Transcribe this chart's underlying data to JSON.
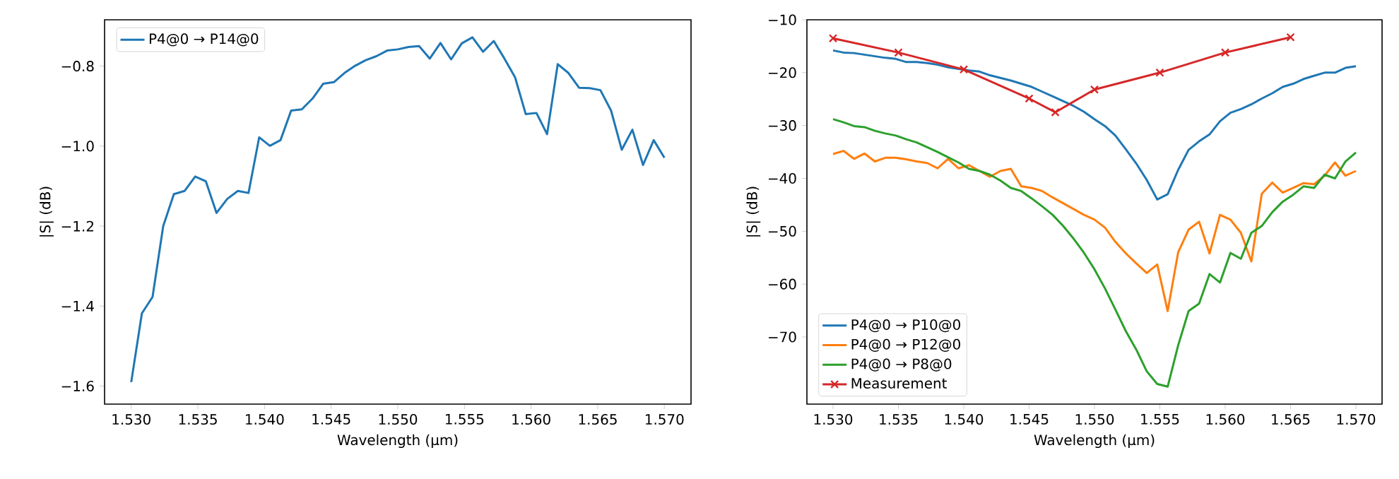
{
  "chart_data": [
    {
      "type": "line",
      "xlabel": "Wavelength (µm)",
      "ylabel": "|S| (dB)",
      "legend": "top left",
      "xlim": [
        1.528,
        1.572
      ],
      "ylim": [
        -1.645,
        -0.684
      ],
      "xticks": [
        {
          "value": 1.53,
          "label": "1.530"
        },
        {
          "value": 1.535,
          "label": "1.535"
        },
        {
          "value": 1.54,
          "label": "1.540"
        },
        {
          "value": 1.545,
          "label": "1.545"
        },
        {
          "value": 1.55,
          "label": "1.550"
        },
        {
          "value": 1.555,
          "label": "1.555"
        },
        {
          "value": 1.56,
          "label": "1.560"
        },
        {
          "value": 1.565,
          "label": "1.565"
        },
        {
          "value": 1.57,
          "label": "1.570"
        }
      ],
      "yticks": [
        {
          "value": -1.6,
          "label": "−1.6"
        },
        {
          "value": -1.4,
          "label": "−1.4"
        },
        {
          "value": -1.2,
          "label": "−1.2"
        },
        {
          "value": -1.0,
          "label": "−1.0"
        },
        {
          "value": -0.8,
          "label": "−0.8"
        }
      ],
      "x": [
        1.53,
        1.5308,
        1.5316,
        1.5324,
        1.5332,
        1.534,
        1.5348,
        1.5356,
        1.5364,
        1.5372,
        1.538,
        1.5388,
        1.5396,
        1.5404,
        1.5412,
        1.542,
        1.5428,
        1.5436,
        1.5444,
        1.5452,
        1.546,
        1.5468,
        1.5476,
        1.5484,
        1.5492,
        1.55,
        1.5508,
        1.5516,
        1.5524,
        1.5532,
        1.554,
        1.5548,
        1.5556,
        1.5564,
        1.5572,
        1.558,
        1.5588,
        1.5596,
        1.5604,
        1.5612,
        1.562,
        1.5628,
        1.5636,
        1.5644,
        1.5652,
        1.566,
        1.5668,
        1.5676,
        1.5684,
        1.5692,
        1.57
      ],
      "series": [
        {
          "name": "P4@0 → P14@0",
          "color": "#1f77b4",
          "values": [
            -1.59,
            -1.418,
            -1.377,
            -1.2,
            -1.12,
            -1.112,
            -1.076,
            -1.088,
            -1.167,
            -1.132,
            -1.112,
            -1.117,
            -0.978,
            -0.999,
            -0.985,
            -0.911,
            -0.908,
            -0.881,
            -0.844,
            -0.84,
            -0.817,
            -0.799,
            -0.785,
            -0.775,
            -0.761,
            -0.758,
            -0.752,
            -0.75,
            -0.781,
            -0.742,
            -0.783,
            -0.743,
            -0.728,
            -0.764,
            -0.737,
            -0.781,
            -0.828,
            -0.92,
            -0.917,
            -0.97,
            -0.795,
            -0.817,
            -0.854,
            -0.855,
            -0.86,
            -0.911,
            -1.009,
            -0.959,
            -1.047,
            -0.985,
            -1.029
          ]
        }
      ]
    },
    {
      "type": "line",
      "xlabel": "Wavelength (µm)",
      "ylabel": "|S| (dB)",
      "legend": "bottom left",
      "xlim": [
        1.528,
        1.572
      ],
      "ylim": [
        -82.7,
        -10.0
      ],
      "xticks": [
        {
          "value": 1.53,
          "label": "1.530"
        },
        {
          "value": 1.535,
          "label": "1.535"
        },
        {
          "value": 1.54,
          "label": "1.540"
        },
        {
          "value": 1.545,
          "label": "1.545"
        },
        {
          "value": 1.55,
          "label": "1.550"
        },
        {
          "value": 1.555,
          "label": "1.555"
        },
        {
          "value": 1.56,
          "label": "1.560"
        },
        {
          "value": 1.565,
          "label": "1.565"
        },
        {
          "value": 1.57,
          "label": "1.570"
        }
      ],
      "yticks": [
        {
          "value": -70,
          "label": "−70"
        },
        {
          "value": -60,
          "label": "−60"
        },
        {
          "value": -50,
          "label": "−50"
        },
        {
          "value": -40,
          "label": "−40"
        },
        {
          "value": -30,
          "label": "−30"
        },
        {
          "value": -20,
          "label": "−20"
        },
        {
          "value": -10,
          "label": "−10"
        }
      ],
      "x": [
        1.53,
        1.5308,
        1.5316,
        1.5324,
        1.5332,
        1.534,
        1.5348,
        1.5356,
        1.5364,
        1.5372,
        1.538,
        1.5388,
        1.5396,
        1.5404,
        1.5412,
        1.542,
        1.5428,
        1.5436,
        1.5444,
        1.5452,
        1.546,
        1.5468,
        1.5476,
        1.5484,
        1.5492,
        1.55,
        1.5508,
        1.5516,
        1.5524,
        1.5532,
        1.554,
        1.5548,
        1.5556,
        1.5564,
        1.5572,
        1.558,
        1.5588,
        1.5596,
        1.5604,
        1.5612,
        1.562,
        1.5628,
        1.5636,
        1.5644,
        1.5652,
        1.566,
        1.5668,
        1.5676,
        1.5684,
        1.5692,
        1.57
      ],
      "series": [
        {
          "name": "P4@0 → P10@0",
          "color": "#1f77b4",
          "values": [
            -15.8,
            -16.2,
            -16.3,
            -16.6,
            -16.9,
            -17.2,
            -17.4,
            -18.0,
            -18.0,
            -18.2,
            -18.5,
            -19.0,
            -19.3,
            -19.6,
            -19.8,
            -20.5,
            -21.0,
            -21.5,
            -22.1,
            -22.7,
            -23.6,
            -24.5,
            -25.4,
            -26.3,
            -27.4,
            -28.8,
            -30.1,
            -31.9,
            -34.5,
            -37.2,
            -40.3,
            -44.0,
            -43.0,
            -38.4,
            -34.6,
            -33.0,
            -31.7,
            -29.2,
            -27.6,
            -26.9,
            -26.0,
            -24.9,
            -23.9,
            -22.7,
            -22.1,
            -21.2,
            -20.6,
            -20.0,
            -20.0,
            -19.1,
            -18.8
          ]
        },
        {
          "name": "P4@0 → P12@0",
          "color": "#ff7f0e",
          "values": [
            -35.4,
            -34.8,
            -36.3,
            -35.3,
            -36.8,
            -36.1,
            -36.1,
            -36.4,
            -36.8,
            -37.1,
            -38.1,
            -36.3,
            -38.1,
            -37.5,
            -38.6,
            -39.7,
            -38.6,
            -38.2,
            -41.5,
            -41.8,
            -42.4,
            -43.6,
            -44.7,
            -45.8,
            -46.9,
            -47.8,
            -49.3,
            -52.0,
            -54.2,
            -56.1,
            -57.9,
            -56.3,
            -65.1,
            -54.0,
            -49.7,
            -48.2,
            -54.2,
            -46.9,
            -47.8,
            -50.3,
            -55.7,
            -42.9,
            -40.8,
            -42.7,
            -41.8,
            -40.9,
            -41.1,
            -39.5,
            -37.0,
            -39.5,
            -38.6
          ]
        },
        {
          "name": "P4@0 → P8@0",
          "color": "#2ca02c",
          "values": [
            -28.8,
            -29.4,
            -30.1,
            -30.3,
            -31.0,
            -31.5,
            -31.9,
            -32.6,
            -33.2,
            -34.1,
            -35.0,
            -36.0,
            -37.0,
            -38.2,
            -38.6,
            -39.3,
            -40.4,
            -41.8,
            -42.4,
            -43.8,
            -45.3,
            -46.9,
            -49.0,
            -51.4,
            -54.1,
            -57.2,
            -60.8,
            -64.8,
            -68.9,
            -72.4,
            -76.5,
            -78.9,
            -79.4,
            -71.6,
            -65.1,
            -63.7,
            -58.1,
            -59.7,
            -54.1,
            -55.2,
            -50.3,
            -49.0,
            -46.4,
            -44.4,
            -43.1,
            -41.5,
            -41.8,
            -39.3,
            -40.0,
            -36.8,
            -35.1
          ]
        },
        {
          "name": "Measurement",
          "color": "#d62728",
          "marker": "cross",
          "x": [
            1.53,
            1.535,
            1.54,
            1.545,
            1.547,
            1.55,
            1.555,
            1.56,
            1.565
          ],
          "values": [
            -13.5,
            -16.2,
            -19.4,
            -24.9,
            -27.5,
            -23.2,
            -20.0,
            -16.2,
            -13.3
          ]
        }
      ]
    }
  ]
}
